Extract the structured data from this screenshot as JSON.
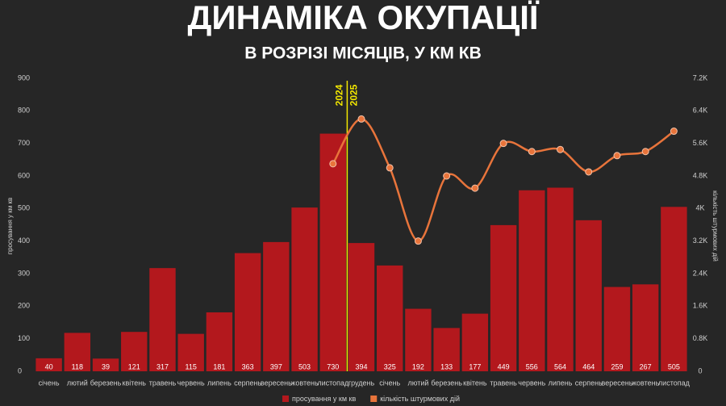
{
  "chart_data": {
    "type": "bar",
    "title": "ДИНАМІКА ОКУПАЦІЇ",
    "subtitle": "В РОЗРІЗІ МІСЯЦІВ, У КМ КВ",
    "annotations": [
      "2024",
      "2025"
    ],
    "y_label": "просування у км кв",
    "y2_label": "кількість штурмових дій",
    "categories": [
      "січень",
      "лютий",
      "березень",
      "квітень",
      "травень",
      "червень",
      "липень",
      "серпень",
      "вересень",
      "жовтень",
      "листопад",
      "грудень",
      "січень",
      "лютий",
      "березень",
      "квітень",
      "травень",
      "червень",
      "липень",
      "серпень",
      "вересень",
      "жовтень",
      "листопад"
    ],
    "series": [
      {
        "name": "просування у км кв",
        "type": "bar",
        "color": "#b3181d",
        "values": [
          40,
          118,
          39,
          121,
          317,
          115,
          181,
          363,
          397,
          503,
          730,
          394,
          325,
          192,
          133,
          177,
          449,
          556,
          564,
          464,
          259,
          267,
          505
        ]
      },
      {
        "name": "кількість штурмових дій",
        "type": "line",
        "axis": "y2",
        "color": "#e8743b",
        "values": [
          null,
          null,
          null,
          null,
          null,
          null,
          null,
          null,
          null,
          null,
          5100,
          6200,
          5000,
          3200,
          4800,
          4500,
          5600,
          5400,
          5450,
          4900,
          5300,
          5400,
          5900
        ]
      }
    ],
    "ylim": [
      0,
      900
    ],
    "yticks": [
      0,
      100,
      200,
      300,
      400,
      500,
      600,
      700,
      800,
      900
    ],
    "y2lim": [
      0,
      7200
    ],
    "y2ticks": [
      0,
      {
        "value": 800,
        "label": "0.8K"
      },
      {
        "value": 1600,
        "label": "1.6K"
      },
      {
        "value": 2400,
        "label": "2.4K"
      },
      {
        "value": 3200,
        "label": "3.2K"
      },
      {
        "value": 4000,
        "label": "4K"
      },
      {
        "value": 4800,
        "label": "4.8K"
      },
      {
        "value": 5600,
        "label": "5.6K"
      },
      {
        "value": 6400,
        "label": "6.4K"
      },
      {
        "value": 7200,
        "label": "7.2K"
      }
    ],
    "grid": false,
    "legend": "bottom"
  }
}
